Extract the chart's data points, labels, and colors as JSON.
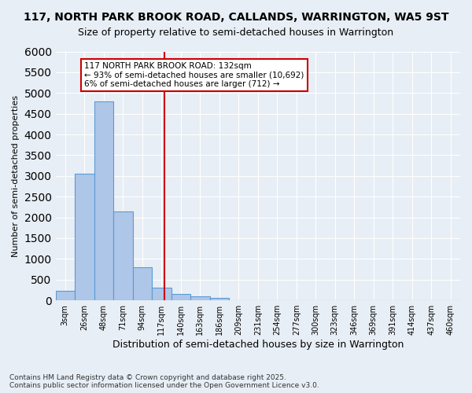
{
  "title_line1": "117, NORTH PARK BROOK ROAD, CALLANDS, WARRINGTON, WA5 9ST",
  "title_line2": "Size of property relative to semi-detached houses in Warrington",
  "xlabel": "Distribution of semi-detached houses by size in Warrington",
  "ylabel": "Number of semi-detached properties",
  "bin_labels": [
    "3sqm",
    "26sqm",
    "48sqm",
    "71sqm",
    "94sqm",
    "117sqm",
    "140sqm",
    "163sqm",
    "186sqm",
    "209sqm",
    "231sqm",
    "254sqm",
    "277sqm",
    "300sqm",
    "323sqm",
    "346sqm",
    "369sqm",
    "391sqm",
    "414sqm",
    "437sqm",
    "460sqm"
  ],
  "bar_heights": [
    230,
    3050,
    4800,
    2150,
    800,
    310,
    150,
    90,
    50,
    0,
    0,
    0,
    0,
    0,
    0,
    0,
    0,
    0,
    0,
    0,
    0
  ],
  "bar_color": "#aec6e8",
  "bar_edge_color": "#5b9bd5",
  "vline_x": 5.17,
  "annotation_text": "117 NORTH PARK BROOK ROAD: 132sqm\n← 93% of semi-detached houses are smaller (10,692)\n6% of semi-detached houses are larger (712) →",
  "annotation_box_facecolor": "#ffffff",
  "annotation_border_color": "#cc0000",
  "ylim": [
    0,
    6000
  ],
  "yticks": [
    0,
    500,
    1000,
    1500,
    2000,
    2500,
    3000,
    3500,
    4000,
    4500,
    5000,
    5500,
    6000
  ],
  "background_color": "#e8eef5",
  "grid_color": "#ffffff",
  "vline_color": "#cc0000",
  "footnote": "Contains HM Land Registry data © Crown copyright and database right 2025.\nContains public sector information licensed under the Open Government Licence v3.0."
}
